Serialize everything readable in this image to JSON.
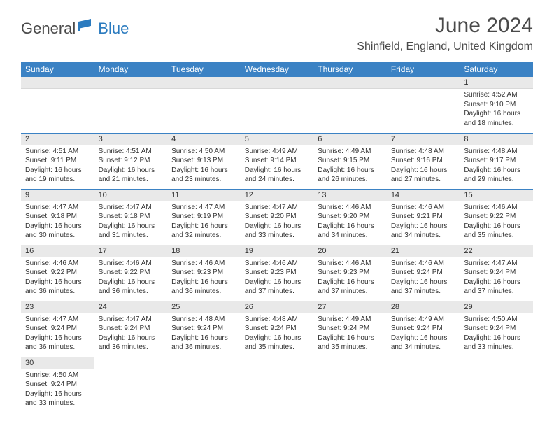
{
  "logo": {
    "part1": "General",
    "part2": "Blue"
  },
  "title": "June 2024",
  "location": "Shinfield, England, United Kingdom",
  "colors": {
    "header_bg": "#3b82c4",
    "header_text": "#ffffff",
    "daynum_bg": "#e9e9e9",
    "cell_border": "#3b82c4",
    "logo_gray": "#4a4a4a",
    "logo_blue": "#2b7bbf"
  },
  "weekdays": [
    "Sunday",
    "Monday",
    "Tuesday",
    "Wednesday",
    "Thursday",
    "Friday",
    "Saturday"
  ],
  "weeks": [
    [
      null,
      null,
      null,
      null,
      null,
      null,
      {
        "day": "1",
        "sunrise": "Sunrise: 4:52 AM",
        "sunset": "Sunset: 9:10 PM",
        "daylight1": "Daylight: 16 hours",
        "daylight2": "and 18 minutes."
      }
    ],
    [
      {
        "day": "2",
        "sunrise": "Sunrise: 4:51 AM",
        "sunset": "Sunset: 9:11 PM",
        "daylight1": "Daylight: 16 hours",
        "daylight2": "and 19 minutes."
      },
      {
        "day": "3",
        "sunrise": "Sunrise: 4:51 AM",
        "sunset": "Sunset: 9:12 PM",
        "daylight1": "Daylight: 16 hours",
        "daylight2": "and 21 minutes."
      },
      {
        "day": "4",
        "sunrise": "Sunrise: 4:50 AM",
        "sunset": "Sunset: 9:13 PM",
        "daylight1": "Daylight: 16 hours",
        "daylight2": "and 23 minutes."
      },
      {
        "day": "5",
        "sunrise": "Sunrise: 4:49 AM",
        "sunset": "Sunset: 9:14 PM",
        "daylight1": "Daylight: 16 hours",
        "daylight2": "and 24 minutes."
      },
      {
        "day": "6",
        "sunrise": "Sunrise: 4:49 AM",
        "sunset": "Sunset: 9:15 PM",
        "daylight1": "Daylight: 16 hours",
        "daylight2": "and 26 minutes."
      },
      {
        "day": "7",
        "sunrise": "Sunrise: 4:48 AM",
        "sunset": "Sunset: 9:16 PM",
        "daylight1": "Daylight: 16 hours",
        "daylight2": "and 27 minutes."
      },
      {
        "day": "8",
        "sunrise": "Sunrise: 4:48 AM",
        "sunset": "Sunset: 9:17 PM",
        "daylight1": "Daylight: 16 hours",
        "daylight2": "and 29 minutes."
      }
    ],
    [
      {
        "day": "9",
        "sunrise": "Sunrise: 4:47 AM",
        "sunset": "Sunset: 9:18 PM",
        "daylight1": "Daylight: 16 hours",
        "daylight2": "and 30 minutes."
      },
      {
        "day": "10",
        "sunrise": "Sunrise: 4:47 AM",
        "sunset": "Sunset: 9:18 PM",
        "daylight1": "Daylight: 16 hours",
        "daylight2": "and 31 minutes."
      },
      {
        "day": "11",
        "sunrise": "Sunrise: 4:47 AM",
        "sunset": "Sunset: 9:19 PM",
        "daylight1": "Daylight: 16 hours",
        "daylight2": "and 32 minutes."
      },
      {
        "day": "12",
        "sunrise": "Sunrise: 4:47 AM",
        "sunset": "Sunset: 9:20 PM",
        "daylight1": "Daylight: 16 hours",
        "daylight2": "and 33 minutes."
      },
      {
        "day": "13",
        "sunrise": "Sunrise: 4:46 AM",
        "sunset": "Sunset: 9:20 PM",
        "daylight1": "Daylight: 16 hours",
        "daylight2": "and 34 minutes."
      },
      {
        "day": "14",
        "sunrise": "Sunrise: 4:46 AM",
        "sunset": "Sunset: 9:21 PM",
        "daylight1": "Daylight: 16 hours",
        "daylight2": "and 34 minutes."
      },
      {
        "day": "15",
        "sunrise": "Sunrise: 4:46 AM",
        "sunset": "Sunset: 9:22 PM",
        "daylight1": "Daylight: 16 hours",
        "daylight2": "and 35 minutes."
      }
    ],
    [
      {
        "day": "16",
        "sunrise": "Sunrise: 4:46 AM",
        "sunset": "Sunset: 9:22 PM",
        "daylight1": "Daylight: 16 hours",
        "daylight2": "and 36 minutes."
      },
      {
        "day": "17",
        "sunrise": "Sunrise: 4:46 AM",
        "sunset": "Sunset: 9:22 PM",
        "daylight1": "Daylight: 16 hours",
        "daylight2": "and 36 minutes."
      },
      {
        "day": "18",
        "sunrise": "Sunrise: 4:46 AM",
        "sunset": "Sunset: 9:23 PM",
        "daylight1": "Daylight: 16 hours",
        "daylight2": "and 36 minutes."
      },
      {
        "day": "19",
        "sunrise": "Sunrise: 4:46 AM",
        "sunset": "Sunset: 9:23 PM",
        "daylight1": "Daylight: 16 hours",
        "daylight2": "and 37 minutes."
      },
      {
        "day": "20",
        "sunrise": "Sunrise: 4:46 AM",
        "sunset": "Sunset: 9:23 PM",
        "daylight1": "Daylight: 16 hours",
        "daylight2": "and 37 minutes."
      },
      {
        "day": "21",
        "sunrise": "Sunrise: 4:46 AM",
        "sunset": "Sunset: 9:24 PM",
        "daylight1": "Daylight: 16 hours",
        "daylight2": "and 37 minutes."
      },
      {
        "day": "22",
        "sunrise": "Sunrise: 4:47 AM",
        "sunset": "Sunset: 9:24 PM",
        "daylight1": "Daylight: 16 hours",
        "daylight2": "and 37 minutes."
      }
    ],
    [
      {
        "day": "23",
        "sunrise": "Sunrise: 4:47 AM",
        "sunset": "Sunset: 9:24 PM",
        "daylight1": "Daylight: 16 hours",
        "daylight2": "and 36 minutes."
      },
      {
        "day": "24",
        "sunrise": "Sunrise: 4:47 AM",
        "sunset": "Sunset: 9:24 PM",
        "daylight1": "Daylight: 16 hours",
        "daylight2": "and 36 minutes."
      },
      {
        "day": "25",
        "sunrise": "Sunrise: 4:48 AM",
        "sunset": "Sunset: 9:24 PM",
        "daylight1": "Daylight: 16 hours",
        "daylight2": "and 36 minutes."
      },
      {
        "day": "26",
        "sunrise": "Sunrise: 4:48 AM",
        "sunset": "Sunset: 9:24 PM",
        "daylight1": "Daylight: 16 hours",
        "daylight2": "and 35 minutes."
      },
      {
        "day": "27",
        "sunrise": "Sunrise: 4:49 AM",
        "sunset": "Sunset: 9:24 PM",
        "daylight1": "Daylight: 16 hours",
        "daylight2": "and 35 minutes."
      },
      {
        "day": "28",
        "sunrise": "Sunrise: 4:49 AM",
        "sunset": "Sunset: 9:24 PM",
        "daylight1": "Daylight: 16 hours",
        "daylight2": "and 34 minutes."
      },
      {
        "day": "29",
        "sunrise": "Sunrise: 4:50 AM",
        "sunset": "Sunset: 9:24 PM",
        "daylight1": "Daylight: 16 hours",
        "daylight2": "and 33 minutes."
      }
    ],
    [
      {
        "day": "30",
        "sunrise": "Sunrise: 4:50 AM",
        "sunset": "Sunset: 9:24 PM",
        "daylight1": "Daylight: 16 hours",
        "daylight2": "and 33 minutes."
      },
      null,
      null,
      null,
      null,
      null,
      null
    ]
  ]
}
